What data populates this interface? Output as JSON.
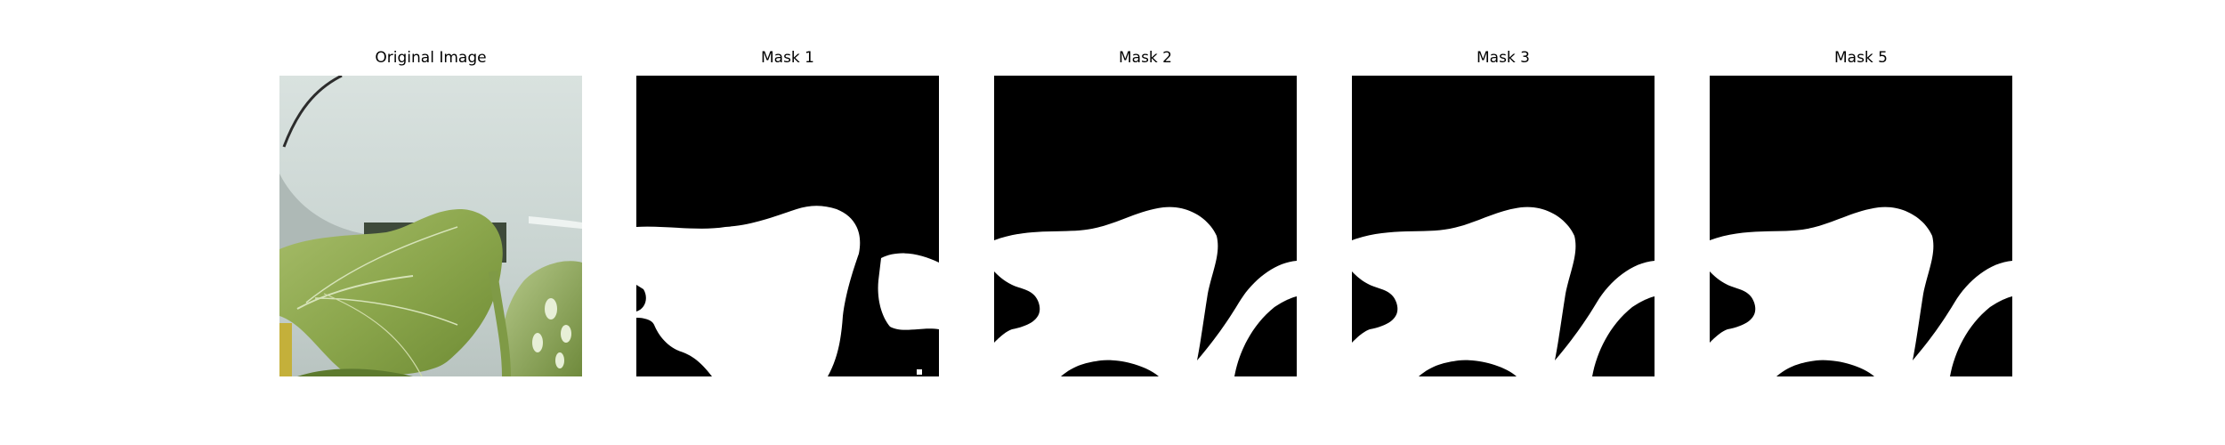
{
  "figure": {
    "panels": [
      {
        "title": "Original Image"
      },
      {
        "title": "Mask 1"
      },
      {
        "title": "Mask 2"
      },
      {
        "title": "Mask 3"
      },
      {
        "title": "Mask 5"
      }
    ]
  },
  "colors": {
    "background": "#ffffff",
    "mask_background": "#000000",
    "mask_foreground": "#ffffff",
    "leaf_green": "#8ea84e",
    "sky_gray": "#cfd9d6"
  }
}
